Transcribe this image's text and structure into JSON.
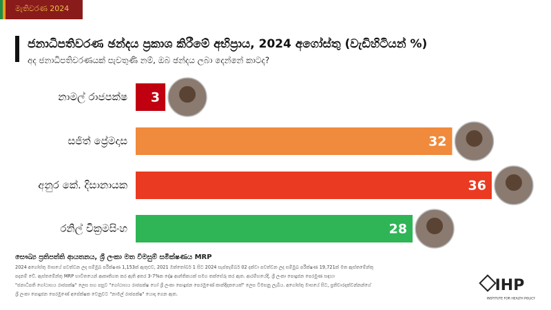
{
  "chart_data": {
    "type": "bar",
    "tag": "මැතිවරණ 2024",
    "title": "ජනාධිපතිවරණ ඡන්දය ප්‍රකාශ කිරීමේ අභිප්‍රාය, 2024 අගෝස්තු (වැඩිහිටියන් %)",
    "subtitle": "අද ජනාධිපතිවරණයක් පැවතුණි නම්, ඔබ ඡන්දය ලබා දෙන්නේ කාටද?",
    "categories": [
      "නාමල් රාජපක්ෂ",
      "සජිත් ප්‍රේමදාස",
      "අනුර කේ. දිසානායක",
      "රනිල් වික්‍රමසිංහ"
    ],
    "values": [
      3,
      32,
      36,
      28
    ],
    "colors": [
      "#c00010",
      "#f08a3c",
      "#ea3a22",
      "#2fb556"
    ],
    "source": "සෞඛ්‍ය ප්‍රතිපත්ති ආයතනය, ශ්‍රී ලංකා මත විමසුම් සමීක්ෂණය MRP",
    "footnote": [
      "2024 අගෝස්තු මාසයේ පවත්වන ලද සම්මුඛ පරීක්ෂණ 1,153ක් ඇතුළුව, 2021 ඔක්තෝබර් 1 සිට 2024 සැප්තැම්බර් 02 දක්වා පවත්වන ලද සම්මුඛ පරීක්ෂණ 19,721ක් මත ඇස්තමේන්තු",
      "පදනම් වේ. ඇස්තමේන්තු MRP භාවිතයෙන් ආකෘතිගත කර ඇති අතර 3-7%ක දෝෂ ආන්තිකයක් සමග තක්සේරු කර ඇත. ආරම්භයේදී, ශ්‍රී ලංකා පොදුජන පෙරමුණ සඳහා",
      "\"ජනාධිපති ගෝඨාභය රාජපක්ෂ\" ලෙස සහ පසුව \"ගෝඨාභය රාජපක්ෂ හෝ ශ්‍රී ලංකා පොදුජන පෙරමුණේ කාන්දිදාතයෙක්\" ලෙස විමසනු ලැබීය. අගෝස්තු මාසයේ සිට, ප්‍රතිචාරදක්වන්නන්ගේ",
      "ශ්‍රී ලංකා පොදුජන පෙරමුණේ අපේක්ෂක වෙනුවට \"නාමල් රාජපක්ෂ\" යොදා ගෙන ඇත."
    ],
    "logo": "IHP",
    "logo_sub": "INSTITUTE FOR HEALTH POLICY"
  }
}
